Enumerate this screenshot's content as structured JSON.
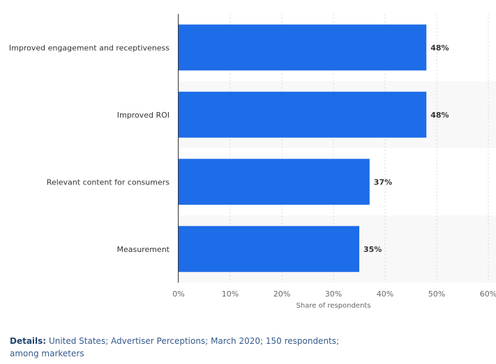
{
  "colors": {
    "bar": "#1d6ce8",
    "band": "#f8f8f8",
    "grid": "#d8d8d8"
  },
  "chart_data": {
    "type": "bar",
    "orientation": "horizontal",
    "categories": [
      "Improved engagement and receptiveness",
      "Improved ROI",
      "Relevant content for consumers",
      "Measurement"
    ],
    "values": [
      48,
      48,
      37,
      35
    ],
    "value_labels": [
      "48%",
      "48%",
      "37%",
      "35%"
    ],
    "xaxis": {
      "ticks": [
        0,
        10,
        20,
        30,
        40,
        50,
        60
      ],
      "tick_labels": [
        "0%",
        "10%",
        "20%",
        "30%",
        "40%",
        "50%",
        "60%"
      ],
      "xlim": [
        0,
        60
      ]
    },
    "xlabel": "Share of respondents",
    "ylabel": "",
    "grid": "vertical dashed"
  },
  "details": {
    "label": "Details:",
    "text": "United States; Advertiser Perceptions; March 2020; 150 respondents; among marketers"
  }
}
